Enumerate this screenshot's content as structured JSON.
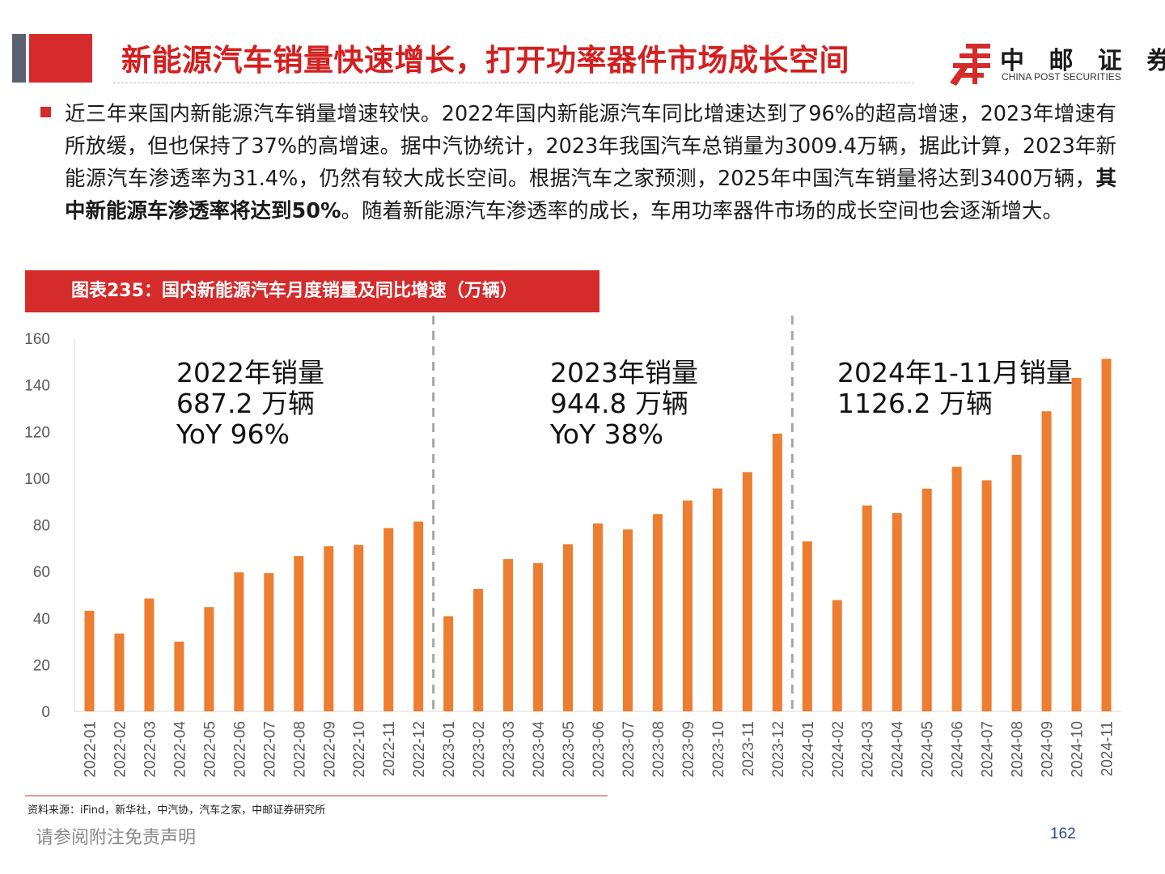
{
  "header": {
    "title": "新能源汽车销量快速增长，打开功率器件市场成长空间",
    "logo_zh": "中 邮 证 券",
    "logo_en": "CHINA POST SECURITIES",
    "logo_icon": "china-post-emblem-icon"
  },
  "body": {
    "paragraph_part1": "近三年来国内新能源汽车销量增速较快。2022年国内新能源汽车同比增速达到了96%的超高增速，2023年增速有所放缓，但也保持了37%的高增速。据中汽协统计，2023年我国汽车总销量为3009.4万辆，据此计算，2023年新能源汽车渗透率为31.4%，仍然有较大成长空间。根据汽车之家预测，2025年中国汽车销量将达到3400万辆，",
    "paragraph_bold": "其中新能源车渗透率将达到50%",
    "paragraph_part2": "。随着新能源汽车渗透率的成长，车用功率器件市场的成长空间也会逐渐增大。"
  },
  "figure": {
    "title": "图表235：国内新能源汽车月度销量及同比增速（万辆）"
  },
  "chart_data": {
    "type": "bar",
    "title": "",
    "xlabel": "",
    "ylabel": "",
    "ylim": [
      0,
      160
    ],
    "yticks": [
      0,
      20,
      40,
      60,
      80,
      100,
      120,
      140,
      160
    ],
    "bar_color": "#ed7d31",
    "grid": false,
    "categories": [
      "2022-01",
      "2022-02",
      "2022-03",
      "2022-04",
      "2022-05",
      "2022-06",
      "2022-07",
      "2022-08",
      "2022-09",
      "2022-10",
      "2022-11",
      "2022-12",
      "2023-01",
      "2023-02",
      "2023-03",
      "2023-04",
      "2023-05",
      "2023-06",
      "2023-07",
      "2023-08",
      "2023-09",
      "2023-10",
      "2023-11",
      "2023-12",
      "2024-01",
      "2024-02",
      "2024-03",
      "2024-04",
      "2024-05",
      "2024-06",
      "2024-07",
      "2024-08",
      "2024-09",
      "2024-10",
      "2024-11"
    ],
    "values": [
      43.1,
      33.4,
      48.4,
      29.9,
      44.7,
      59.6,
      59.3,
      66.6,
      70.8,
      71.4,
      78.6,
      81.4,
      40.8,
      52.5,
      65.3,
      63.6,
      71.7,
      80.6,
      78.0,
      84.6,
      90.4,
      95.6,
      102.6,
      119.1,
      72.9,
      47.7,
      88.3,
      85.0,
      95.5,
      104.9,
      99.1,
      110.0,
      128.7,
      143.0,
      151.2
    ],
    "dividers_after": [
      "2022-12",
      "2023-12"
    ],
    "annotations": [
      {
        "lines": [
          "2022年销量",
          "687.2 万辆",
          "YoY 96%"
        ]
      },
      {
        "lines": [
          "2023年销量",
          "944.8 万辆",
          "YoY 38%"
        ]
      },
      {
        "lines": [
          "2024年1-11月销量",
          "1126.2 万辆"
        ]
      }
    ]
  },
  "footer": {
    "source": "资料来源：iFind，新华社，中汽协，汽车之家，中邮证券研究所",
    "disclaimer": "请参阅附注免责声明",
    "page": "162"
  }
}
